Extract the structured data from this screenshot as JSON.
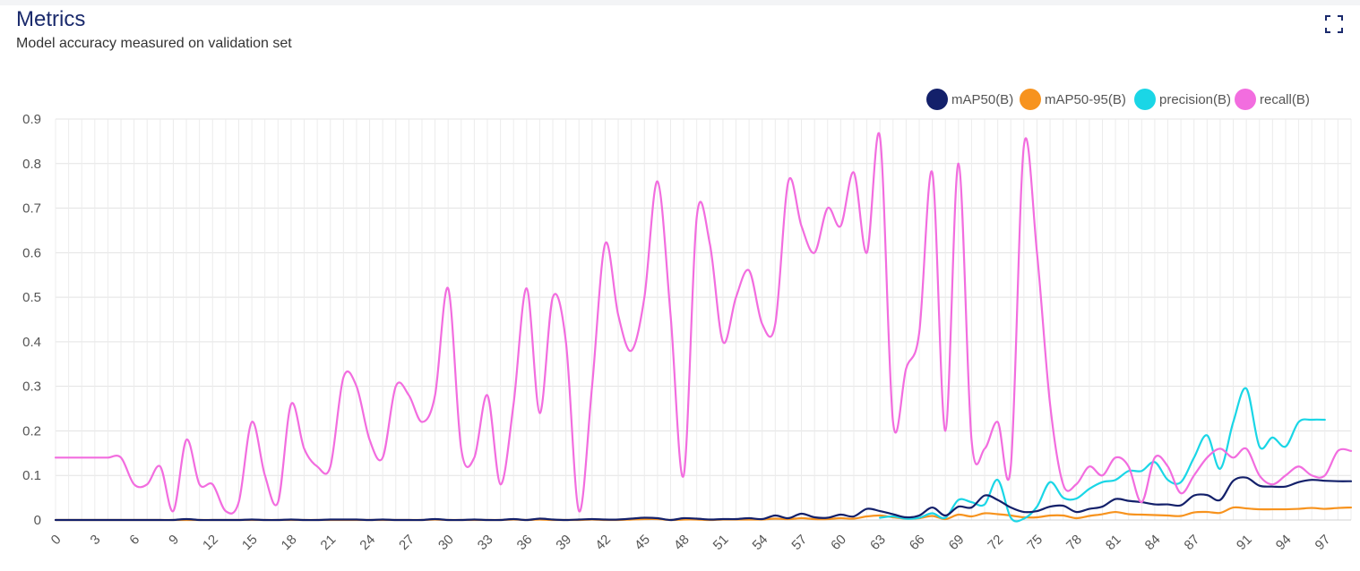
{
  "header": {
    "title": "Metrics",
    "subtitle": "Model accuracy measured on validation set"
  },
  "icons": {
    "expand": "expand-icon"
  },
  "chart_data": {
    "type": "line",
    "x": [
      0,
      1,
      2,
      3,
      4,
      5,
      6,
      7,
      8,
      9,
      10,
      11,
      12,
      13,
      14,
      15,
      16,
      17,
      18,
      19,
      20,
      21,
      22,
      23,
      24,
      25,
      26,
      27,
      28,
      29,
      30,
      31,
      32,
      33,
      34,
      35,
      36,
      37,
      38,
      39,
      40,
      41,
      42,
      43,
      44,
      45,
      46,
      47,
      48,
      49,
      50,
      51,
      52,
      53,
      54,
      55,
      56,
      57,
      58,
      59,
      60,
      61,
      62,
      63,
      64,
      65,
      66,
      67,
      68,
      69,
      70,
      71,
      72,
      73,
      74,
      75,
      76,
      77,
      78,
      79,
      80,
      81,
      82,
      83,
      84,
      85,
      86,
      87,
      88,
      89,
      90,
      91,
      92,
      93,
      94,
      95,
      96,
      97,
      98,
      99
    ],
    "x_ticks": [
      0,
      3,
      6,
      9,
      12,
      15,
      18,
      21,
      24,
      27,
      30,
      33,
      36,
      39,
      42,
      45,
      48,
      51,
      54,
      57,
      60,
      63,
      66,
      69,
      72,
      75,
      78,
      81,
      84,
      87,
      91,
      94,
      97
    ],
    "y_ticks": [
      0,
      0.1,
      0.2,
      0.3,
      0.4,
      0.5,
      0.6,
      0.7,
      0.8,
      0.9
    ],
    "ylim": [
      0,
      0.9
    ],
    "grid": true,
    "legend_position": "top-right",
    "series": [
      {
        "name": "mAP50(B)",
        "color": "#13206a",
        "values": [
          0,
          0,
          0,
          0,
          0,
          0,
          0,
          0,
          0,
          0,
          0.002,
          0,
          0,
          0,
          0,
          0.001,
          0,
          0,
          0.001,
          0,
          0,
          0.001,
          0.001,
          0.001,
          0,
          0.001,
          0,
          0,
          0,
          0.002,
          0,
          0,
          0.001,
          0,
          0,
          0.002,
          0,
          0.003,
          0.001,
          0,
          0.001,
          0.002,
          0.001,
          0.001,
          0.003,
          0.005,
          0.004,
          0,
          0.004,
          0.003,
          0.001,
          0.002,
          0.002,
          0.004,
          0.002,
          0.01,
          0.004,
          0.014,
          0.006,
          0.005,
          0.012,
          0.008,
          0.025,
          0.02,
          0.013,
          0.006,
          0.01,
          0.028,
          0.01,
          0.03,
          0.028,
          0.055,
          0.045,
          0.028,
          0.018,
          0.02,
          0.03,
          0.032,
          0.018,
          0.025,
          0.03,
          0.047,
          0.043,
          0.04,
          0.035,
          0.035,
          0.033,
          0.055,
          0.056,
          0.045,
          0.088,
          0.095,
          0.077,
          0.075,
          0.075,
          0.085,
          0.09,
          0.088,
          0.087,
          0.087
        ]
      },
      {
        "name": "mAP50-95(B)",
        "color": "#f7931e",
        "values": [
          0,
          0,
          0,
          0,
          0,
          0,
          0,
          0,
          0,
          0,
          0,
          0,
          0,
          0,
          0,
          0,
          0,
          0,
          0,
          0,
          0,
          0,
          0,
          0,
          0,
          0,
          0,
          0,
          0,
          0.001,
          0,
          0,
          0,
          0,
          0,
          0.001,
          0,
          0.001,
          0,
          0,
          0,
          0.001,
          0,
          0,
          0.001,
          0.002,
          0.002,
          0,
          0.001,
          0.001,
          0,
          0.001,
          0.001,
          0.001,
          0.001,
          0.003,
          0.002,
          0.004,
          0.002,
          0.002,
          0.004,
          0.003,
          0.008,
          0.01,
          0.006,
          0.003,
          0.004,
          0.009,
          0.002,
          0.012,
          0.008,
          0.015,
          0.013,
          0.01,
          0.006,
          0.006,
          0.01,
          0.01,
          0.004,
          0.009,
          0.013,
          0.018,
          0.013,
          0.012,
          0.011,
          0.01,
          0.009,
          0.017,
          0.018,
          0.016,
          0.028,
          0.026,
          0.024,
          0.024,
          0.024,
          0.025,
          0.027,
          0.025,
          0.027,
          0.028
        ]
      },
      {
        "name": "precision(B)",
        "color": "#1ad6e6",
        "values": [
          null,
          null,
          null,
          null,
          null,
          null,
          null,
          null,
          null,
          null,
          null,
          null,
          null,
          null,
          null,
          null,
          null,
          null,
          null,
          null,
          null,
          null,
          null,
          null,
          null,
          null,
          null,
          null,
          null,
          null,
          null,
          null,
          null,
          null,
          null,
          null,
          null,
          null,
          null,
          null,
          null,
          null,
          null,
          null,
          null,
          null,
          null,
          null,
          null,
          null,
          null,
          null,
          null,
          null,
          null,
          null,
          null,
          null,
          null,
          null,
          null,
          null,
          null,
          0.005,
          0.008,
          0.003,
          0.005,
          0.015,
          0.005,
          0.045,
          0.04,
          0.035,
          0.09,
          0.005,
          0.003,
          0.03,
          0.085,
          0.05,
          0.048,
          0.07,
          0.085,
          0.09,
          0.11,
          0.11,
          0.13,
          0.09,
          0.085,
          0.14,
          0.19,
          0.115,
          0.22,
          0.295,
          0.165,
          0.185,
          0.165,
          0.22,
          0.225,
          0.225,
          null,
          null
        ]
      },
      {
        "name": "recall(B)",
        "color": "#f26ddf",
        "values": [
          0.14,
          0.14,
          0.14,
          0.14,
          0.14,
          0.14,
          0.08,
          0.08,
          0.12,
          0.02,
          0.18,
          0.08,
          0.08,
          0.02,
          0.04,
          0.22,
          0.1,
          0.04,
          0.26,
          0.16,
          0.12,
          0.12,
          0.32,
          0.3,
          0.18,
          0.14,
          0.3,
          0.28,
          0.22,
          0.28,
          0.52,
          0.16,
          0.14,
          0.28,
          0.08,
          0.26,
          0.52,
          0.24,
          0.5,
          0.4,
          0.02,
          0.3,
          0.62,
          0.46,
          0.38,
          0.5,
          0.76,
          0.46,
          0.1,
          0.68,
          0.62,
          0.4,
          0.5,
          0.56,
          0.44,
          0.44,
          0.76,
          0.66,
          0.6,
          0.7,
          0.66,
          0.78,
          0.6,
          0.86,
          0.22,
          0.34,
          0.42,
          0.78,
          0.2,
          0.8,
          0.18,
          0.16,
          0.22,
          0.12,
          0.84,
          0.6,
          0.26,
          0.08,
          0.08,
          0.12,
          0.1,
          0.14,
          0.12,
          0.04,
          0.14,
          0.12,
          0.06,
          0.1,
          0.14,
          0.16,
          0.14,
          0.16,
          0.1,
          0.08,
          0.1,
          0.12,
          0.1,
          0.1,
          0.155,
          0.155
        ]
      }
    ]
  }
}
